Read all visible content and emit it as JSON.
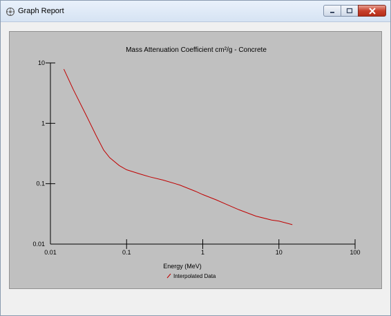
{
  "window": {
    "title": "Graph Report",
    "icon": "graph-report-icon",
    "buttons": [
      "minimize-icon",
      "maximize-icon",
      "close-icon"
    ]
  },
  "colors": {
    "plot_background": "#c0c0c0",
    "series_line": "#c00000",
    "axis": "#000000"
  },
  "chart_data": {
    "type": "line",
    "title": "Mass Attenuation Coefficient cm²/g - Concrete",
    "xlabel": "Energy (MeV)",
    "ylabel": "",
    "xscale": "log",
    "yscale": "log",
    "xlim": [
      0.01,
      100
    ],
    "ylim": [
      0.01,
      10
    ],
    "x_ticks": [
      "0.01",
      "0.1",
      "1",
      "10",
      "100"
    ],
    "y_ticks": [
      "0.01",
      "0.1",
      "1",
      "10"
    ],
    "grid": false,
    "legend": "bottom-center",
    "series": [
      {
        "name": "Interpolated Data",
        "x": [
          0.015,
          0.02,
          0.03,
          0.04,
          0.05,
          0.06,
          0.08,
          0.1,
          0.15,
          0.2,
          0.3,
          0.5,
          0.8,
          1.0,
          1.5,
          2.0,
          3.0,
          5.0,
          8.0,
          10.0,
          15.0
        ],
        "y": [
          7.9,
          3.6,
          1.3,
          0.62,
          0.36,
          0.27,
          0.2,
          0.17,
          0.145,
          0.13,
          0.115,
          0.095,
          0.075,
          0.066,
          0.054,
          0.046,
          0.037,
          0.029,
          0.025,
          0.024,
          0.021
        ]
      }
    ]
  }
}
